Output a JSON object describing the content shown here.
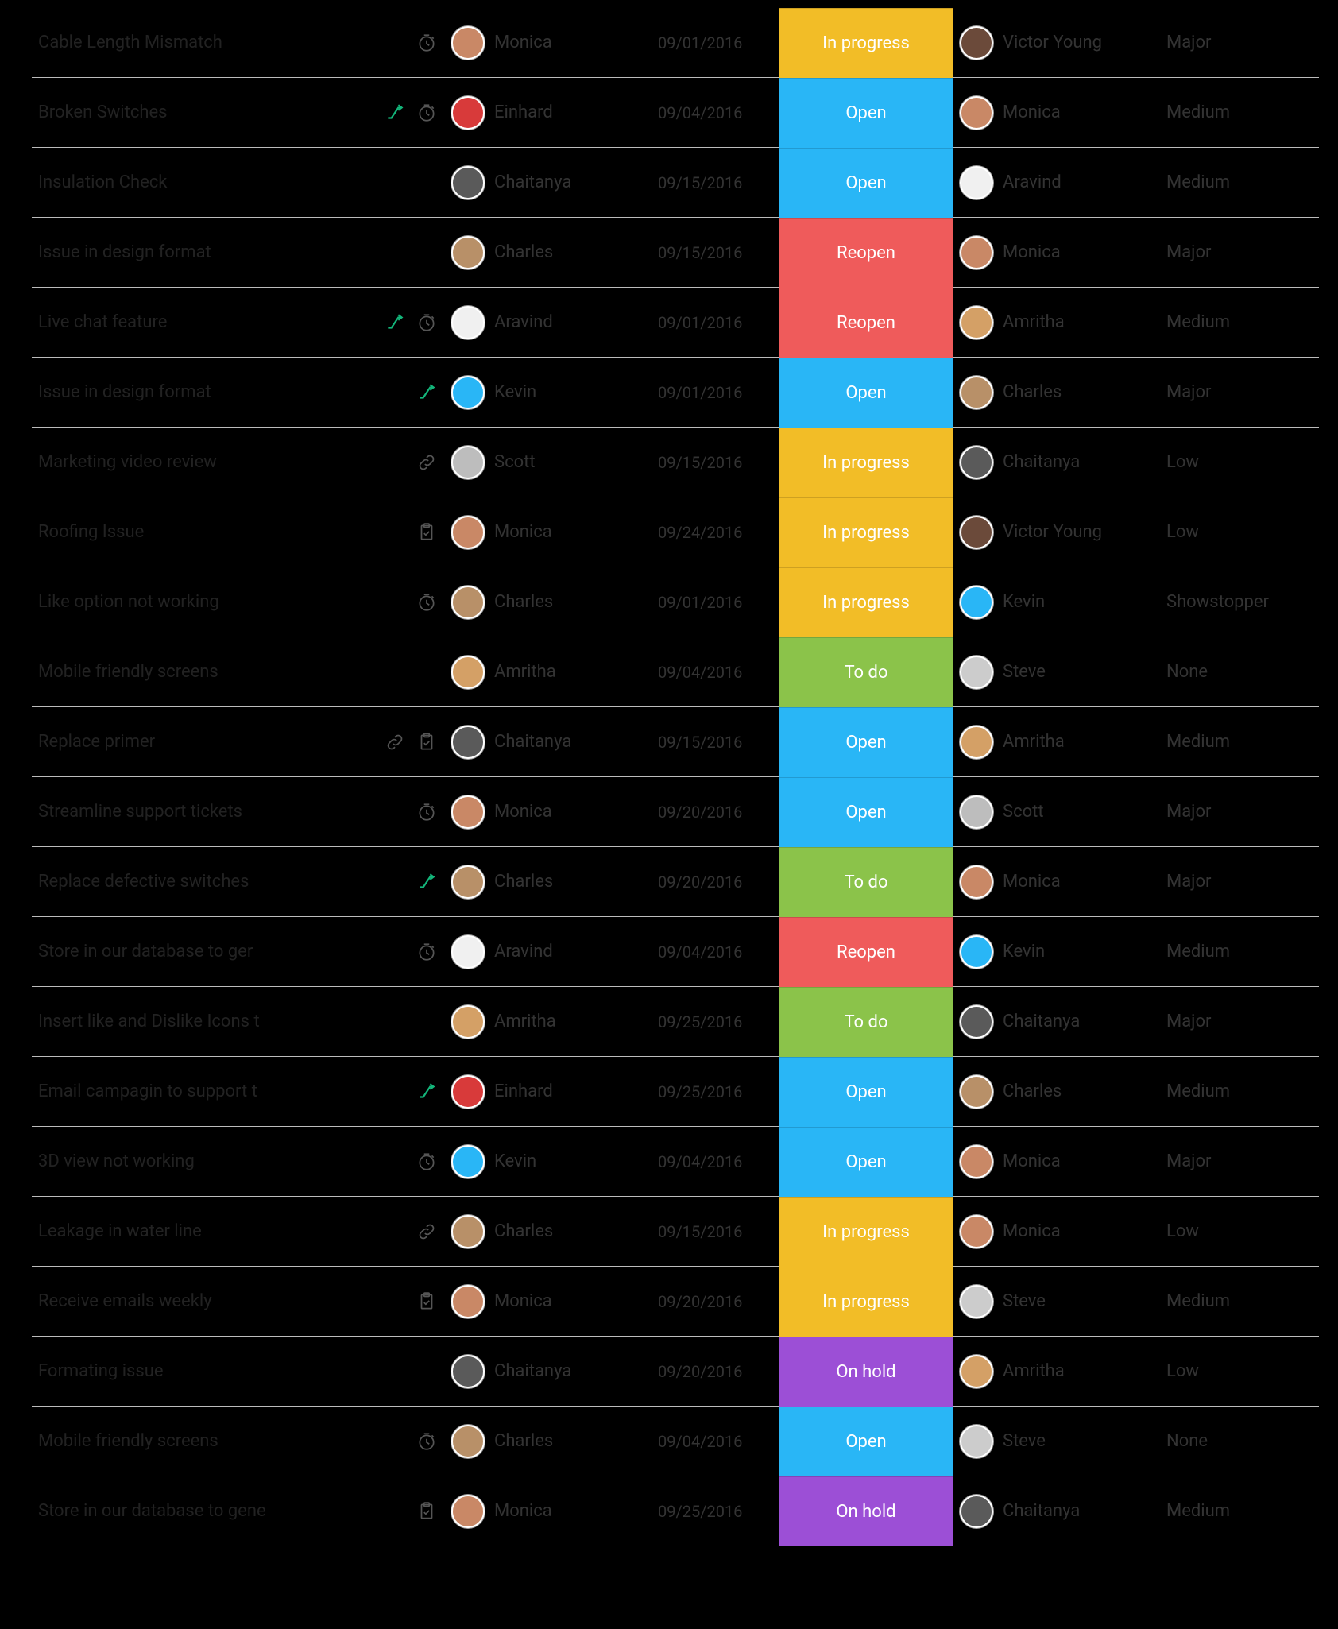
{
  "status_colors": {
    "In progress": "#f2bd27",
    "Open": "#29b6f6",
    "Reopen": "#ef5b5b",
    "To do": "#8bc34a",
    "On hold": "#9c4fd6"
  },
  "avatar_colors": {
    "Monica": "#c98866",
    "Einhard": "#d83a3a",
    "Chaitanya": "#5a5a5a",
    "Charles": "#b89068",
    "Aravind": "#f0f0f0",
    "Kevin": "#29b6f6",
    "Scott": "#bdbdbd",
    "Amritha": "#d4a066",
    "Victor Young": "#6b4a3a",
    "Steve": "#cccccc"
  },
  "rows": [
    {
      "title": "Cable Length Mismatch",
      "icons": [
        "clock"
      ],
      "assignee": "Monica",
      "date": "09/01/2016",
      "status": "In progress",
      "reporter": "Victor Young",
      "severity": "Major"
    },
    {
      "title": "Broken Switches",
      "icons": [
        "escalator",
        "clock"
      ],
      "assignee": "Einhard",
      "date": "09/04/2016",
      "status": "Open",
      "reporter": "Monica",
      "severity": "Medium"
    },
    {
      "title": "Insulation Check",
      "icons": [],
      "assignee": "Chaitanya",
      "date": "09/15/2016",
      "status": "Open",
      "reporter": "Aravind",
      "severity": "Medium"
    },
    {
      "title": "Issue in design format",
      "icons": [],
      "assignee": "Charles",
      "date": "09/15/2016",
      "status": "Reopen",
      "reporter": "Monica",
      "severity": "Major"
    },
    {
      "title": "Live chat feature",
      "icons": [
        "escalator",
        "clock"
      ],
      "assignee": "Aravind",
      "date": "09/01/2016",
      "status": "Reopen",
      "reporter": "Amritha",
      "severity": "Medium"
    },
    {
      "title": "Issue in design format",
      "icons": [
        "escalator"
      ],
      "assignee": "Kevin",
      "date": "09/01/2016",
      "status": "Open",
      "reporter": "Charles",
      "severity": "Major"
    },
    {
      "title": "Marketing video review",
      "icons": [
        "link"
      ],
      "assignee": "Scott",
      "date": "09/15/2016",
      "status": "In progress",
      "reporter": "Chaitanya",
      "severity": "Low"
    },
    {
      "title": "Roofing Issue",
      "icons": [
        "clipboard"
      ],
      "assignee": "Monica",
      "date": "09/24/2016",
      "status": "In progress",
      "reporter": "Victor Young",
      "severity": "Low"
    },
    {
      "title": "Like option not working",
      "icons": [
        "clock"
      ],
      "assignee": "Charles",
      "date": "09/01/2016",
      "status": "In progress",
      "reporter": "Kevin",
      "severity": "Showstopper"
    },
    {
      "title": "Mobile friendly screens",
      "icons": [],
      "assignee": "Amritha",
      "date": "09/04/2016",
      "status": "To do",
      "reporter": "Steve",
      "severity": "None"
    },
    {
      "title": "Replace primer",
      "icons": [
        "link",
        "clipboard"
      ],
      "assignee": "Chaitanya",
      "date": "09/15/2016",
      "status": "Open",
      "reporter": "Amritha",
      "severity": "Medium"
    },
    {
      "title": "Streamline support tickets",
      "icons": [
        "clock"
      ],
      "assignee": "Monica",
      "date": "09/20/2016",
      "status": "Open",
      "reporter": "Scott",
      "severity": "Major"
    },
    {
      "title": "Replace defective switches",
      "icons": [
        "escalator"
      ],
      "assignee": "Charles",
      "date": "09/20/2016",
      "status": "To do",
      "reporter": "Monica",
      "severity": "Major"
    },
    {
      "title": "Store in our database to ger",
      "icons": [
        "clock"
      ],
      "assignee": "Aravind",
      "date": "09/04/2016",
      "status": "Reopen",
      "reporter": "Kevin",
      "severity": "Medium"
    },
    {
      "title": "Insert like and Dislike Icons t",
      "icons": [],
      "assignee": "Amritha",
      "date": "09/25/2016",
      "status": "To do",
      "reporter": "Chaitanya",
      "severity": "Major"
    },
    {
      "title": "Email campagin to support t",
      "icons": [
        "escalator"
      ],
      "assignee": "Einhard",
      "date": "09/25/2016",
      "status": "Open",
      "reporter": "Charles",
      "severity": "Medium"
    },
    {
      "title": "3D view not working",
      "icons": [
        "clock"
      ],
      "assignee": "Kevin",
      "date": "09/04/2016",
      "status": "Open",
      "reporter": "Monica",
      "severity": "Major"
    },
    {
      "title": "Leakage in water line",
      "icons": [
        "link"
      ],
      "assignee": "Charles",
      "date": "09/15/2016",
      "status": "In progress",
      "reporter": "Monica",
      "severity": "Low"
    },
    {
      "title": "Receive emails weekly",
      "icons": [
        "clipboard"
      ],
      "assignee": "Monica",
      "date": "09/20/2016",
      "status": "In progress",
      "reporter": "Steve",
      "severity": "Medium"
    },
    {
      "title": "Formating issue",
      "icons": [],
      "assignee": "Chaitanya",
      "date": "09/20/2016",
      "status": "On hold",
      "reporter": "Amritha",
      "severity": "Low"
    },
    {
      "title": "Mobile friendly screens",
      "icons": [
        "clock"
      ],
      "assignee": "Charles",
      "date": "09/04/2016",
      "status": "Open",
      "reporter": "Steve",
      "severity": "None"
    },
    {
      "title": "Store in our database to gene",
      "icons": [
        "clipboard"
      ],
      "assignee": "Monica",
      "date": "09/25/2016",
      "status": "On hold",
      "reporter": "Chaitanya",
      "severity": "Medium"
    }
  ]
}
